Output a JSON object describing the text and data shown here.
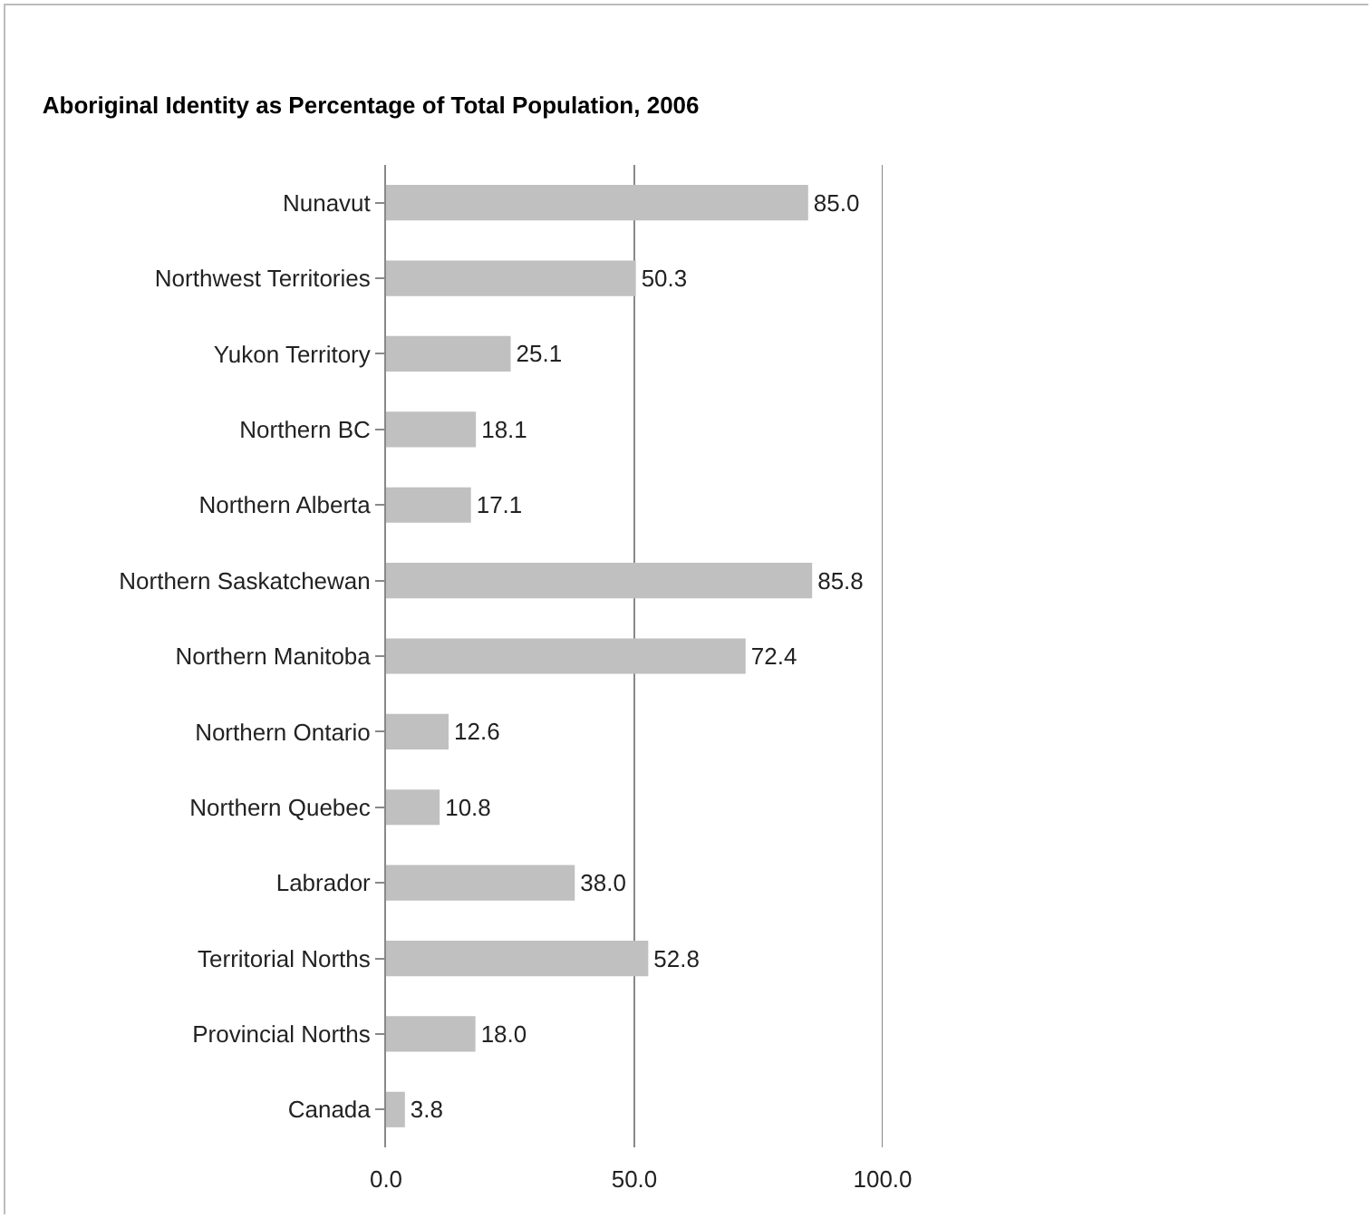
{
  "chart_data": {
    "type": "bar",
    "orientation": "horizontal",
    "title": "Aboriginal Identity as Percentage of Total Population, 2006",
    "categories": [
      "Nunavut",
      "Northwest Territories",
      "Yukon Territory",
      "Northern BC",
      "Northern Alberta",
      "Northern Saskatchewan",
      "Northern Manitoba",
      "Northern Ontario",
      "Northern Quebec",
      "Labrador",
      "Territorial Norths",
      "Provincial Norths",
      "Canada"
    ],
    "values": [
      85.0,
      50.3,
      25.1,
      18.1,
      17.1,
      85.8,
      72.4,
      12.6,
      10.8,
      38.0,
      52.8,
      18.0,
      3.8
    ],
    "value_labels": [
      "85.0",
      "50.3",
      "25.1",
      "18.1",
      "17.1",
      "85.8",
      "72.4",
      "12.6",
      "10.8",
      "38.0",
      "52.8",
      "18.0",
      "3.8"
    ],
    "color": "#c0c0c0",
    "xlim": [
      0,
      100
    ],
    "xticks": [
      {
        "value": 0,
        "label": "0.0"
      },
      {
        "value": 50,
        "label": "50.0"
      },
      {
        "value": 100,
        "label": "100.0"
      }
    ],
    "grid": "x"
  }
}
